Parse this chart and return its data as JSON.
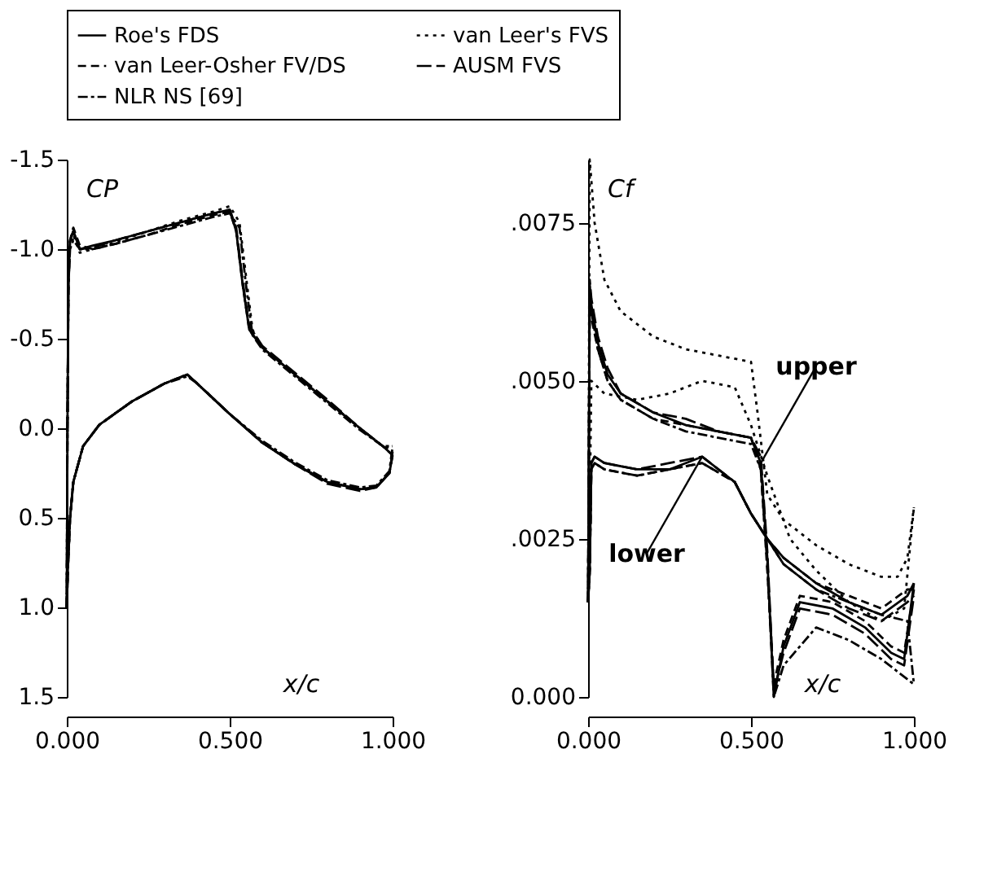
{
  "chart_data": [
    {
      "type": "line",
      "ylabel": "CP",
      "xlabel": "x/c",
      "legend": "top",
      "grid": false,
      "marker": "none",
      "xlim": [
        0,
        1
      ],
      "xticks": [
        {
          "value": 0,
          "label": "0.000"
        },
        {
          "value": 0.5,
          "label": "0.500"
        },
        {
          "value": 1,
          "label": "1.000"
        }
      ],
      "ylim": [
        1.5,
        -1.5
      ],
      "yticks": [
        {
          "value": -1.5,
          "label": "-1.5"
        },
        {
          "value": -1,
          "label": "-1.0"
        },
        {
          "value": -0.5,
          "label": "-0.5"
        },
        {
          "value": 0,
          "label": "0.0"
        },
        {
          "value": 0.5,
          "label": "0.5"
        },
        {
          "value": 1,
          "label": "1.0"
        },
        {
          "value": 1.5,
          "label": "1.5"
        }
      ],
      "series": [
        {
          "name": "Roe's FDS",
          "color": "#000000",
          "line_style": "solid",
          "x": [
            0,
            0.002,
            0.005,
            0.01,
            0.02,
            0.04,
            0.08,
            0.15,
            0.25,
            0.35,
            0.45,
            0.5,
            0.52,
            0.54,
            0.56,
            0.6,
            0.7,
            0.8,
            0.9,
            0.97,
            1.0
          ],
          "values": [
            1.0,
            0.0,
            -0.8,
            -1.05,
            -1.1,
            -1.0,
            -1.02,
            -1.05,
            -1.1,
            -1.15,
            -1.2,
            -1.22,
            -1.1,
            -0.8,
            -0.55,
            -0.45,
            -0.3,
            -0.15,
            0.0,
            0.1,
            0.15
          ]
        },
        {
          "color": "#000000",
          "line_style": "solid",
          "x": [
            0,
            0.003,
            0.01,
            0.02,
            0.05,
            0.1,
            0.2,
            0.3,
            0.37,
            0.4,
            0.5,
            0.6,
            0.7,
            0.8,
            0.9,
            0.95,
            0.99,
            1.0
          ],
          "values": [
            1.0,
            0.8,
            0.5,
            0.3,
            0.1,
            -0.02,
            -0.15,
            -0.25,
            -0.3,
            -0.25,
            -0.08,
            0.08,
            0.2,
            0.3,
            0.34,
            0.33,
            0.25,
            0.15
          ]
        },
        {
          "name": "van Leer's FVS",
          "color": "#000000",
          "line_style": "dotted",
          "x": [
            0,
            0.002,
            0.005,
            0.01,
            0.02,
            0.04,
            0.08,
            0.15,
            0.25,
            0.35,
            0.45,
            0.5,
            0.53,
            0.55,
            0.57,
            0.6,
            0.7,
            0.8,
            0.9,
            0.97,
            1.0
          ],
          "values": [
            1.0,
            0.0,
            -0.8,
            -1.03,
            -1.08,
            -0.98,
            -1.0,
            -1.04,
            -1.1,
            -1.16,
            -1.21,
            -1.24,
            -1.15,
            -0.85,
            -0.55,
            -0.45,
            -0.3,
            -0.15,
            0.0,
            0.1,
            0.12
          ]
        },
        {
          "color": "#000000",
          "line_style": "dotted",
          "x": [
            0,
            0.003,
            0.01,
            0.02,
            0.05,
            0.1,
            0.2,
            0.3,
            0.37,
            0.4,
            0.5,
            0.6,
            0.7,
            0.8,
            0.9,
            0.95,
            0.99,
            1.0
          ],
          "values": [
            1.0,
            0.8,
            0.5,
            0.3,
            0.1,
            -0.02,
            -0.15,
            -0.25,
            -0.3,
            -0.25,
            -0.08,
            0.08,
            0.2,
            0.3,
            0.34,
            0.33,
            0.25,
            0.12
          ]
        },
        {
          "name": "van Leer-Osher FV/DS",
          "color": "#000000",
          "line_style": "dashed",
          "x": [
            0,
            0.002,
            0.005,
            0.01,
            0.02,
            0.04,
            0.08,
            0.15,
            0.25,
            0.35,
            0.45,
            0.5,
            0.52,
            0.54,
            0.56,
            0.6,
            0.7,
            0.8,
            0.9,
            0.97,
            1.0
          ],
          "values": [
            1.0,
            0.0,
            -0.8,
            -1.05,
            -1.12,
            -1.02,
            -1.0,
            -1.03,
            -1.08,
            -1.14,
            -1.19,
            -1.21,
            -1.1,
            -0.8,
            -0.55,
            -0.45,
            -0.3,
            -0.15,
            0.0,
            0.1,
            0.15
          ]
        },
        {
          "color": "#000000",
          "line_style": "dashed",
          "x": [
            0,
            0.003,
            0.01,
            0.02,
            0.05,
            0.1,
            0.2,
            0.3,
            0.37,
            0.4,
            0.5,
            0.6,
            0.7,
            0.8,
            0.9,
            0.95,
            0.99,
            1.0
          ],
          "values": [
            1.0,
            0.8,
            0.5,
            0.3,
            0.1,
            -0.02,
            -0.15,
            -0.25,
            -0.3,
            -0.25,
            -0.08,
            0.08,
            0.2,
            0.3,
            0.34,
            0.33,
            0.25,
            0.15
          ]
        },
        {
          "name": "AUSM FVS",
          "color": "#000000",
          "line_style": "dashed",
          "x": [
            0,
            0.002,
            0.005,
            0.01,
            0.02,
            0.04,
            0.08,
            0.15,
            0.25,
            0.35,
            0.45,
            0.5,
            0.52,
            0.54,
            0.56,
            0.6,
            0.7,
            0.8,
            0.9,
            0.97,
            1.0
          ],
          "values": [
            1.0,
            0.0,
            -0.8,
            -1.05,
            -1.1,
            -1.0,
            -1.01,
            -1.05,
            -1.1,
            -1.15,
            -1.2,
            -1.22,
            -1.12,
            -0.82,
            -0.57,
            -0.46,
            -0.31,
            -0.16,
            0.0,
            0.1,
            0.13
          ]
        },
        {
          "color": "#000000",
          "line_style": "dashed",
          "x": [
            0,
            0.003,
            0.01,
            0.02,
            0.05,
            0.1,
            0.2,
            0.3,
            0.37,
            0.4,
            0.5,
            0.6,
            0.7,
            0.8,
            0.9,
            0.95,
            0.99,
            1.0
          ],
          "values": [
            1.0,
            0.8,
            0.5,
            0.3,
            0.1,
            -0.02,
            -0.15,
            -0.25,
            -0.3,
            -0.25,
            -0.08,
            0.08,
            0.2,
            0.31,
            0.35,
            0.33,
            0.25,
            0.13
          ]
        },
        {
          "name": "NLR NS [69]",
          "color": "#000000",
          "line_style": "dashed",
          "x": [
            0,
            0.002,
            0.005,
            0.01,
            0.02,
            0.04,
            0.08,
            0.15,
            0.25,
            0.35,
            0.45,
            0.5,
            0.53,
            0.55,
            0.57,
            0.6,
            0.7,
            0.8,
            0.9,
            0.97,
            1.0
          ],
          "values": [
            1.0,
            0.0,
            -0.8,
            -1.0,
            -1.05,
            -1.0,
            -1.0,
            -1.03,
            -1.08,
            -1.13,
            -1.18,
            -1.2,
            -1.12,
            -0.8,
            -0.52,
            -0.44,
            -0.29,
            -0.14,
            0.01,
            0.1,
            0.1
          ]
        },
        {
          "color": "#000000",
          "line_style": "dashed",
          "x": [
            0,
            0.003,
            0.01,
            0.02,
            0.05,
            0.1,
            0.2,
            0.3,
            0.37,
            0.4,
            0.5,
            0.6,
            0.7,
            0.8,
            0.9,
            0.95,
            0.99,
            1.0
          ],
          "values": [
            1.0,
            0.8,
            0.5,
            0.3,
            0.1,
            -0.02,
            -0.15,
            -0.25,
            -0.29,
            -0.25,
            -0.08,
            0.07,
            0.19,
            0.29,
            0.33,
            0.32,
            0.24,
            0.1
          ]
        }
      ]
    },
    {
      "type": "line",
      "ylabel": "Cf",
      "xlabel": "x/c",
      "legend": "top",
      "grid": false,
      "marker": "none",
      "xlim": [
        0,
        1
      ],
      "xticks": [
        {
          "value": 0,
          "label": "0.000"
        },
        {
          "value": 0.5,
          "label": "0.500"
        },
        {
          "value": 1,
          "label": "1.000"
        }
      ],
      "ylim": [
        0,
        0.0085
      ],
      "yticks": [
        {
          "value": 0,
          "label": "0.000"
        },
        {
          "value": 0.0025,
          "label": ".0025"
        },
        {
          "value": 0.005,
          "label": ".0050"
        },
        {
          "value": 0.0075,
          "label": ".0075"
        }
      ],
      "annotations": [
        {
          "text": "upper",
          "x": 0.53,
          "y": 0.0037
        },
        {
          "text": "lower",
          "x": 0.35,
          "y": 0.0038
        }
      ],
      "series": [
        {
          "name": "Roe's FDS",
          "color": "#000000",
          "line_style": "solid",
          "x": [
            0,
            0.005,
            0.01,
            0.03,
            0.06,
            0.1,
            0.2,
            0.3,
            0.4,
            0.5,
            0.53,
            0.55,
            0.57,
            0.6,
            0.65,
            0.75,
            0.85,
            0.93,
            0.97,
            1.0
          ],
          "values": [
            0.0015,
            0.0065,
            0.0062,
            0.0056,
            0.0051,
            0.0048,
            0.0045,
            0.0043,
            0.0042,
            0.0041,
            0.0037,
            0.0022,
            0.0,
            0.0008,
            0.0015,
            0.0014,
            0.0011,
            0.0007,
            0.0006,
            0.0018
          ]
        },
        {
          "color": "#000000",
          "line_style": "solid",
          "x": [
            0,
            0.005,
            0.01,
            0.02,
            0.05,
            0.15,
            0.25,
            0.35,
            0.45,
            0.5,
            0.55,
            0.6,
            0.7,
            0.8,
            0.9,
            0.98,
            1.0
          ],
          "values": [
            0.0015,
            0.002,
            0.0037,
            0.0038,
            0.0037,
            0.0036,
            0.0036,
            0.0038,
            0.0034,
            0.0029,
            0.0025,
            0.0022,
            0.0018,
            0.0015,
            0.0013,
            0.0016,
            0.0018
          ]
        },
        {
          "name": "van Leer's FVS",
          "color": "#000000",
          "line_style": "dotted",
          "x": [
            0,
            0.005,
            0.02,
            0.05,
            0.1,
            0.2,
            0.3,
            0.4,
            0.5,
            0.52,
            0.55,
            0.6,
            0.7,
            0.8,
            0.9,
            0.95,
            0.98,
            1.0
          ],
          "values": [
            0.0015,
            0.0085,
            0.0075,
            0.0066,
            0.0061,
            0.0057,
            0.0055,
            0.0054,
            0.0053,
            0.0045,
            0.0032,
            0.0028,
            0.0024,
            0.0021,
            0.0019,
            0.0019,
            0.0022,
            0.003
          ]
        },
        {
          "color": "#000000",
          "line_style": "dotted",
          "x": [
            0,
            0.005,
            0.01,
            0.05,
            0.15,
            0.25,
            0.35,
            0.45,
            0.5,
            0.55,
            0.62,
            0.7,
            0.8,
            0.9,
            0.97,
            1.0
          ],
          "values": [
            0.0015,
            0.003,
            0.005,
            0.0048,
            0.0047,
            0.0048,
            0.005,
            0.0049,
            0.0043,
            0.0035,
            0.0025,
            0.002,
            0.0015,
            0.0012,
            0.0014,
            0.003
          ]
        },
        {
          "name": "van Leer-Osher FV/DS",
          "color": "#000000",
          "line_style": "dashed",
          "x": [
            0,
            0.005,
            0.01,
            0.03,
            0.06,
            0.1,
            0.2,
            0.3,
            0.4,
            0.5,
            0.53,
            0.55,
            0.57,
            0.6,
            0.65,
            0.75,
            0.85,
            0.93,
            0.97,
            1.0
          ],
          "values": [
            0.0015,
            0.0063,
            0.006,
            0.0055,
            0.005,
            0.0047,
            0.0044,
            0.0043,
            0.0042,
            0.0041,
            0.0036,
            0.002,
            0.0002,
            0.0009,
            0.0016,
            0.0015,
            0.0012,
            0.0008,
            0.0007,
            0.0017
          ]
        },
        {
          "color": "#000000",
          "line_style": "dashed",
          "x": [
            0,
            0.005,
            0.01,
            0.02,
            0.05,
            0.15,
            0.25,
            0.35,
            0.45,
            0.5,
            0.55,
            0.6,
            0.7,
            0.8,
            0.9,
            0.98,
            1.0
          ],
          "values": [
            0.0015,
            0.002,
            0.0036,
            0.0037,
            0.0036,
            0.0035,
            0.0036,
            0.0037,
            0.0034,
            0.0029,
            0.0025,
            0.0022,
            0.0018,
            0.0016,
            0.0014,
            0.0017,
            0.0017
          ]
        },
        {
          "name": "AUSM FVS",
          "color": "#000000",
          "line_style": "dashed",
          "x": [
            0,
            0.005,
            0.01,
            0.03,
            0.06,
            0.1,
            0.2,
            0.3,
            0.4,
            0.5,
            0.53,
            0.55,
            0.57,
            0.6,
            0.65,
            0.75,
            0.85,
            0.93,
            0.97,
            1.0
          ],
          "values": [
            0.0015,
            0.0066,
            0.0063,
            0.0057,
            0.0052,
            0.0048,
            0.0045,
            0.0044,
            0.0042,
            0.0041,
            0.0038,
            0.0023,
            0.0001,
            0.0007,
            0.0014,
            0.0013,
            0.001,
            0.0006,
            0.0005,
            0.0016
          ]
        },
        {
          "color": "#000000",
          "line_style": "dashed",
          "x": [
            0,
            0.005,
            0.01,
            0.02,
            0.05,
            0.15,
            0.25,
            0.35,
            0.45,
            0.5,
            0.55,
            0.6,
            0.7,
            0.8,
            0.9,
            0.98,
            1.0
          ],
          "values": [
            0.0015,
            0.002,
            0.0037,
            0.0038,
            0.0037,
            0.0036,
            0.0037,
            0.0038,
            0.0034,
            0.0029,
            0.0025,
            0.0021,
            0.0017,
            0.0014,
            0.0012,
            0.0015,
            0.0016
          ]
        },
        {
          "name": "NLR NS [69]",
          "color": "#000000",
          "line_style": "dashed",
          "x": [
            0,
            0.005,
            0.01,
            0.03,
            0.06,
            0.1,
            0.2,
            0.3,
            0.4,
            0.5,
            0.53,
            0.55,
            0.57,
            0.6,
            0.7,
            0.8,
            0.9,
            1.0
          ],
          "values": [
            0.0015,
            0.0064,
            0.0061,
            0.0055,
            0.005,
            0.0047,
            0.0044,
            0.0042,
            0.0041,
            0.004,
            0.0036,
            0.0021,
            0.0,
            0.0005,
            0.0011,
            0.0009,
            0.0006,
            0.0002
          ]
        },
        {
          "color": "#000000",
          "line_style": "dashed",
          "x": [
            0,
            0.005,
            0.01,
            0.02,
            0.05,
            0.15,
            0.25,
            0.35,
            0.45,
            0.5,
            0.55,
            0.6,
            0.7,
            0.8,
            0.9,
            0.98,
            1.0
          ],
          "values": [
            0.0015,
            0.002,
            0.0036,
            0.0037,
            0.0036,
            0.0035,
            0.0036,
            0.0037,
            0.0034,
            0.0029,
            0.0025,
            0.0021,
            0.0017,
            0.0015,
            0.0013,
            0.0012,
            0.0002
          ]
        }
      ]
    }
  ]
}
